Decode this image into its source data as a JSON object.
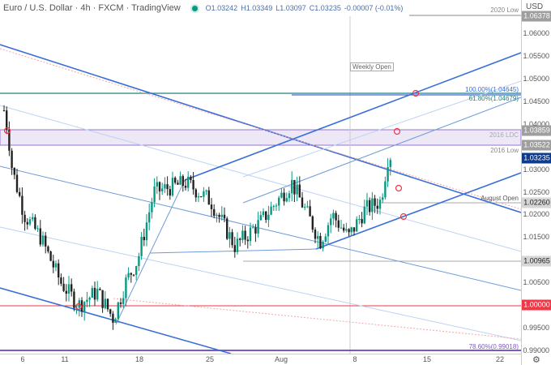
{
  "header": {
    "title": "Euro / U.S. Dollar · 4h · FXCM · TradingView",
    "open": "O1.03242",
    "high": "H1.03349",
    "low": "L1.03097",
    "close": "C1.03235",
    "change": "-0.00007 (-0.01%)"
  },
  "axis": {
    "currency": "USD",
    "ticks": [
      "1.06000",
      "1.05500",
      "1.05000",
      "1.04500",
      "1.04000",
      "1.03000",
      "1.02500",
      "1.02000",
      "1.01500",
      "1.00500",
      "0.99500",
      "0.99000"
    ],
    "tags": [
      {
        "v": "1.06378",
        "p": 1.06378,
        "bg": "#9e9e9e",
        "fg": "#fff"
      },
      {
        "v": "1.03859",
        "p": 1.03859,
        "bg": "#9e9e9e",
        "fg": "#fff"
      },
      {
        "v": "1.03522",
        "p": 1.03522,
        "bg": "#9e9e9e",
        "fg": "#fff"
      },
      {
        "v": "1.03235",
        "p": 1.03235,
        "bg": "#0d3c8c",
        "fg": "#fff"
      },
      {
        "v": "1.02260",
        "p": 1.0226,
        "bg": "#d6d6d6",
        "fg": "#222"
      },
      {
        "v": "1.00965",
        "p": 1.00965,
        "bg": "#d6d6d6",
        "fg": "#222"
      },
      {
        "v": "1.00000",
        "p": 1.0,
        "bg": "#f23645",
        "fg": "#fff"
      }
    ]
  },
  "xaxis": [
    "6",
    "11",
    "18",
    "25",
    "Aug",
    "8",
    "15",
    "22"
  ],
  "labels": {
    "low2020": "2020 Low",
    "weekly_open": "Weekly Open",
    "fib100": "100.00%(1.04645)",
    "fib618": "61.80%(1.04679)",
    "ldc2016": "2016 LDC",
    "low2016": "2016 Low",
    "august_open": "August Open",
    "fib786": "78.60%(0.99018)"
  },
  "chart_data": {
    "type": "candlestick",
    "symbol": "EURUSD",
    "timeframe": "4h",
    "ylim": [
      0.99,
      1.065
    ],
    "path": [
      [
        5,
        1.043
      ],
      [
        10,
        1.038
      ],
      [
        15,
        1.03
      ],
      [
        30,
        1.02
      ],
      [
        50,
        1.015
      ],
      [
        75,
        1.005
      ],
      [
        97,
        1.0
      ],
      [
        120,
        1.003
      ],
      [
        140,
        0.997
      ],
      [
        155,
        1.005
      ],
      [
        170,
        1.01
      ],
      [
        190,
        1.025
      ],
      [
        230,
        1.027
      ],
      [
        260,
        1.023
      ],
      [
        290,
        1.013
      ],
      [
        320,
        1.018
      ],
      [
        360,
        1.027
      ],
      [
        385,
        1.018
      ],
      [
        395,
        1.014
      ],
      [
        410,
        1.02
      ],
      [
        430,
        1.015
      ],
      [
        450,
        1.021
      ],
      [
        470,
        1.023
      ],
      [
        480,
        1.034
      ],
      [
        483,
        1.0324
      ]
    ]
  },
  "colors": {
    "up": "#089981",
    "down": "#222222",
    "support": "#f23645",
    "channel": "#3a6fd8"
  }
}
